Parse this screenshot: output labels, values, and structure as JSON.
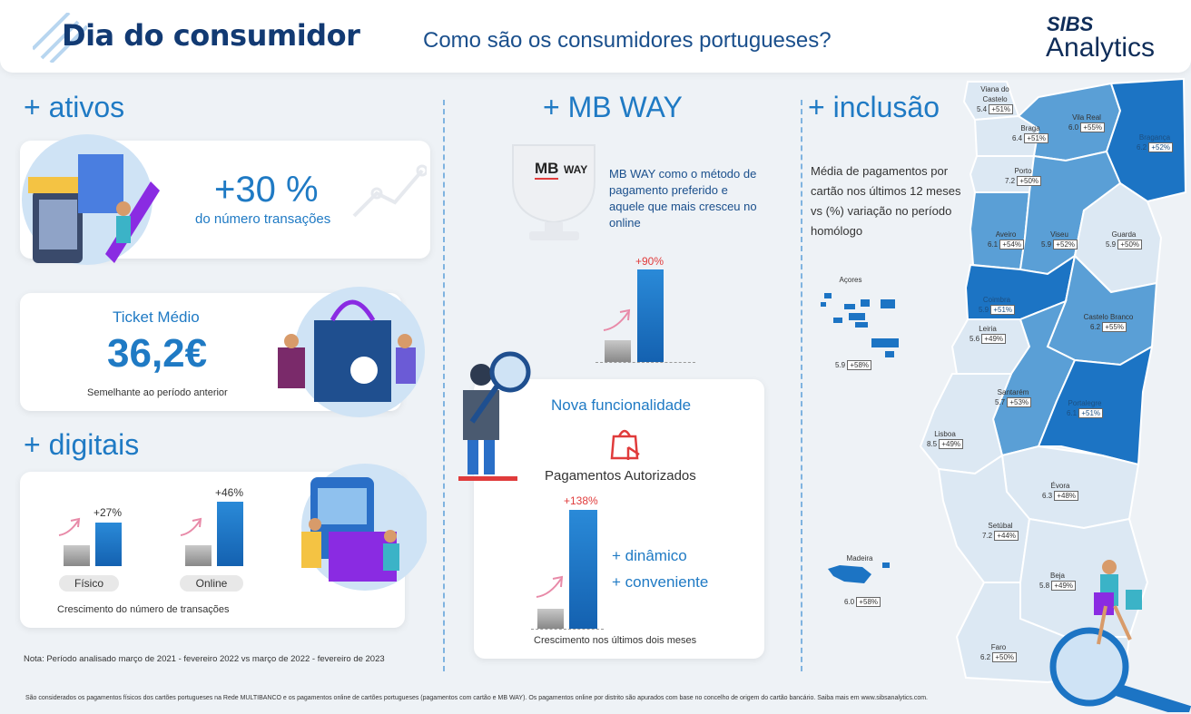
{
  "header": {
    "title": "Dia do consumidor",
    "subtitle": "Como são os consumidores portugueses?",
    "logo_top": "SIBS",
    "logo_bottom": "Analytics"
  },
  "ativos": {
    "section_title": "+ ativos",
    "stat_value": "+30 %",
    "stat_caption": "do número transações",
    "ticket_title": "Ticket Médio",
    "ticket_value": "36,2€",
    "ticket_caption": "Semelhante ao período anterior"
  },
  "digitais": {
    "section_title": "+ digitais",
    "fisico_pct": "+27%",
    "fisico_label": "Físico",
    "online_pct": "+46%",
    "online_label": "Online",
    "caption": "Crescimento do número de transações"
  },
  "mbway": {
    "section_title": "+ MB WAY",
    "logo_mb": "MB",
    "logo_way": "WAY",
    "description": "MB WAY como o método de pagamento preferido e aquele que mais cresceu no online",
    "growth_pct": "+90%",
    "feature_title": "Nova funcionalidade",
    "feature_name": "Pagamentos Autorizados",
    "feature_pct": "+138%",
    "bullet1": "+ dinâmico",
    "bullet2": "+ conveniente",
    "feature_caption": "Crescimento nos últimos dois meses"
  },
  "inclusao": {
    "section_title": "+ inclusão",
    "description": "Média de pagamentos por cartão nos últimos 12 meses vs (%) variação no período homólogo",
    "districts": [
      {
        "name": "Viana do Castelo",
        "value": "5.4",
        "change": "+51%"
      },
      {
        "name": "Braga",
        "value": "6.4",
        "change": "+51%"
      },
      {
        "name": "Vila Real",
        "value": "6.0",
        "change": "+55%"
      },
      {
        "name": "Bragança",
        "value": "6.2",
        "change": "+52%"
      },
      {
        "name": "Porto",
        "value": "7.2",
        "change": "+50%"
      },
      {
        "name": "Aveiro",
        "value": "6.1",
        "change": "+54%"
      },
      {
        "name": "Viseu",
        "value": "5.9",
        "change": "+52%"
      },
      {
        "name": "Guarda",
        "value": "5.9",
        "change": "+50%"
      },
      {
        "name": "Coimbra",
        "value": "5.9",
        "change": "+51%"
      },
      {
        "name": "Castelo Branco",
        "value": "6.2",
        "change": "+55%"
      },
      {
        "name": "Leiria",
        "value": "5.6",
        "change": "+49%"
      },
      {
        "name": "Santarém",
        "value": "5.7",
        "change": "+53%"
      },
      {
        "name": "Portalegre",
        "value": "6.1",
        "change": "+51%"
      },
      {
        "name": "Lisboa",
        "value": "8.5",
        "change": "+49%"
      },
      {
        "name": "Évora",
        "value": "6.3",
        "change": "+48%"
      },
      {
        "name": "Setúbal",
        "value": "7.2",
        "change": "+44%"
      },
      {
        "name": "Beja",
        "value": "5.8",
        "change": "+49%"
      },
      {
        "name": "Faro",
        "value": "6.2",
        "change": "+50%"
      },
      {
        "name": "Açores",
        "value": "5.9",
        "change": "+58%"
      },
      {
        "name": "Madeira",
        "value": "6.0",
        "change": "+58%"
      }
    ]
  },
  "footer": {
    "note": "Nota: Período analisado março de 2021 - fevereiro 2022 vs março de 2022 - fevereiro de 2023",
    "disclaimer": "São considerados os pagamentos físicos dos cartões portugueses na Rede MULTIBANCO  e os pagamentos online de cartões portugueses (pagamentos com cartão e MB WAY). Os pagamentos online por distrito são apurados com base no concelho de origem do cartão bancário. Saiba mais em www.sibsanalytics.com."
  },
  "colors": {
    "primary": "#1f7ac4",
    "dark": "#123a73",
    "map_dark": "#1c74c4",
    "map_mid": "#5a9fd6",
    "map_light": "#dce8f3",
    "accent_red": "#e03b3b"
  }
}
